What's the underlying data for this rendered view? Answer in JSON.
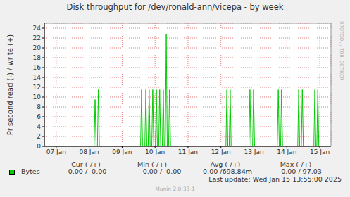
{
  "chart_data": {
    "type": "line",
    "title": "Disk throughput for /dev/ronald-ann/vicepa - by week",
    "y_label": "Pr second read (-) / write (+)",
    "x": [
      -0.36,
      1.15,
      1.18,
      1.21,
      1.25,
      1.28,
      1.31,
      2.56,
      2.59,
      2.62,
      2.69,
      2.72,
      2.75,
      2.79,
      2.82,
      2.85,
      2.9,
      2.93,
      2.96,
      3.01,
      3.04,
      3.07,
      3.11,
      3.14,
      3.17,
      3.22,
      3.25,
      3.28,
      3.31,
      3.34,
      3.37,
      3.41,
      3.44,
      3.47,
      5.15,
      5.18,
      5.21,
      5.25,
      5.28,
      5.31,
      5.85,
      5.88,
      5.91,
      5.96,
      5.99,
      6.02,
      6.71,
      6.74,
      6.77,
      6.81,
      6.84,
      6.87,
      7.33,
      7.36,
      7.39,
      7.44,
      7.47,
      7.5,
      7.82,
      7.85,
      7.88,
      7.91,
      7.94,
      7.97,
      8.34
    ],
    "series": [
      {
        "name": "Bytes",
        "color": "#00cc00",
        "values": [
          0,
          0,
          9.5,
          0,
          0,
          11.5,
          0,
          0,
          11.5,
          0,
          0,
          11.5,
          0,
          0,
          11.5,
          0,
          0,
          11.5,
          0,
          0,
          11.5,
          0,
          0,
          11.5,
          0,
          0,
          11.5,
          0,
          0,
          22.8,
          0,
          0,
          11.5,
          0,
          0,
          11.5,
          0,
          0,
          11.5,
          0,
          0,
          11.5,
          0,
          0,
          11.5,
          0,
          0,
          11.5,
          0,
          0,
          11.5,
          0,
          0,
          11.5,
          0,
          0,
          11.5,
          0,
          0,
          11.5,
          0,
          0,
          11.5,
          0,
          0
        ]
      }
    ],
    "xlim": [
      -0.36,
      8.34
    ],
    "xticks": [
      {
        "value": 0,
        "label": "07 Jan"
      },
      {
        "value": 1,
        "label": "08 Jan"
      },
      {
        "value": 2,
        "label": "09 Jan"
      },
      {
        "value": 3,
        "label": "10 Jan"
      },
      {
        "value": 4,
        "label": "11 Jan"
      },
      {
        "value": 5,
        "label": "12 Jan"
      },
      {
        "value": 6,
        "label": "13 Jan"
      },
      {
        "value": 7,
        "label": "14 Jan"
      },
      {
        "value": 8,
        "label": "15 Jan"
      }
    ],
    "ylim": [
      0,
      25
    ],
    "yticks": [
      0,
      2,
      4,
      6,
      8,
      10,
      12,
      14,
      16,
      18,
      20,
      22,
      24
    ],
    "grid": true,
    "legend_table": {
      "columns": [
        "Cur (-/+)",
        "Min (-/+)",
        "Avg (-/+)",
        "Max (-/+)"
      ],
      "cells": [
        "0.00 /  0.00",
        "0.00 /  0.00",
        "0.00 /698.84m",
        "0.00 / 97.03"
      ]
    },
    "last_update": "Last update: Wed Jan 15 13:55:00 2025",
    "footer": "Munin 2.0.33-1",
    "side_text": "RRDTOOL / TOBI OETIKER"
  }
}
